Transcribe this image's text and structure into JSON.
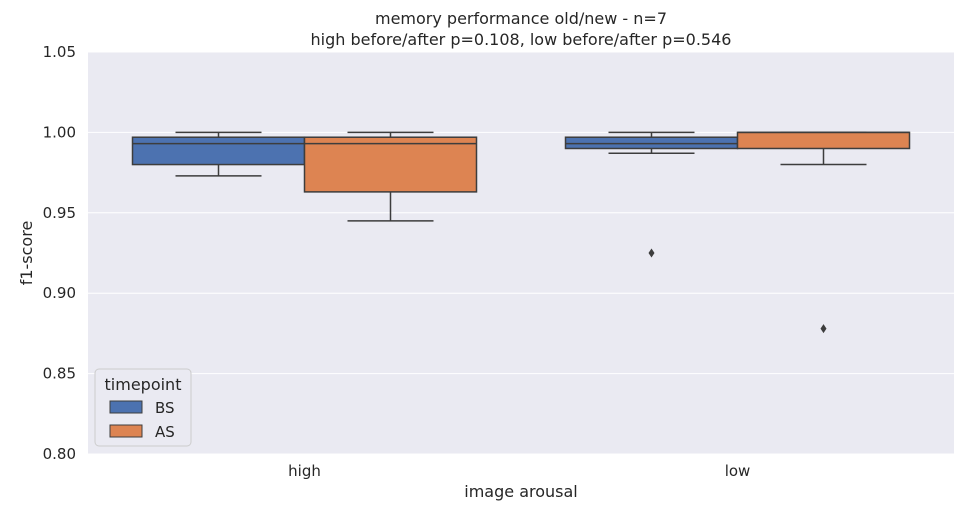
{
  "chart_data": {
    "type": "box",
    "title": "memory performance old/new - n=7",
    "subtitle": "high before/after p=0.108, low before/after p=0.546",
    "xlabel": "image arousal",
    "ylabel": "f1-score",
    "ylim": [
      0.8,
      1.05
    ],
    "yticks": [
      "0.80",
      "0.85",
      "0.90",
      "0.95",
      "1.00",
      "1.05"
    ],
    "categories": [
      "high",
      "low"
    ],
    "grid": true,
    "legend": {
      "title": "timepoint",
      "placement": "lower-left"
    },
    "series": [
      {
        "name": "BS",
        "color": "#4c72b0",
        "boxes": [
          {
            "category": "high",
            "whisker_low": 0.973,
            "q1": 0.98,
            "median": 0.993,
            "q3": 0.997,
            "whisker_high": 1.0,
            "outliers": []
          },
          {
            "category": "low",
            "whisker_low": 0.987,
            "q1": 0.99,
            "median": 0.993,
            "q3": 0.997,
            "whisker_high": 1.0,
            "outliers": [
              0.925
            ]
          }
        ]
      },
      {
        "name": "AS",
        "color": "#dd8452",
        "boxes": [
          {
            "category": "high",
            "whisker_low": 0.945,
            "q1": 0.963,
            "median": 0.993,
            "q3": 0.997,
            "whisker_high": 1.0,
            "outliers": []
          },
          {
            "category": "low",
            "whisker_low": 0.98,
            "q1": 0.99,
            "median": 1.0,
            "q3": 1.0,
            "whisker_high": 1.0,
            "outliers": [
              0.878
            ]
          }
        ]
      }
    ]
  },
  "colors": {
    "plot_background": "#eaeaf2",
    "grid": "#ffffff",
    "line": "#3d3d3d",
    "text": "#262626"
  }
}
